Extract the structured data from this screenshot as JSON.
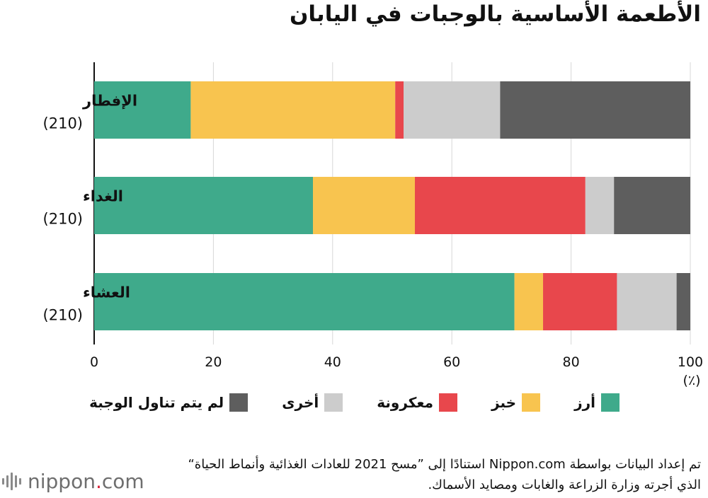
{
  "title": "الأطعمة الأساسية بالوجبات في اليابان",
  "chart_data": {
    "type": "bar",
    "orientation": "horizontal",
    "stacked": true,
    "categories": [
      {
        "label": "الإفطار",
        "n": "(210)"
      },
      {
        "label": "الغداء",
        "n": "(210)"
      },
      {
        "label": "العشاء",
        "n": "(210)"
      }
    ],
    "series": [
      {
        "name": "أرز",
        "color": "#3faa8b",
        "values": [
          16.2,
          36.7,
          70.5
        ]
      },
      {
        "name": "خبز",
        "color": "#f8c44f",
        "values": [
          34.3,
          17.1,
          4.8
        ]
      },
      {
        "name": "معكرونة",
        "color": "#e8474c",
        "values": [
          1.4,
          28.6,
          12.4
        ]
      },
      {
        "name": "أخرى",
        "color": "#cccccc",
        "values": [
          16.2,
          4.8,
          10.0
        ]
      },
      {
        "name": "لم يتم تناول الوجبة",
        "color": "#5e5e5e",
        "values": [
          31.9,
          12.8,
          2.3
        ]
      }
    ],
    "xlim": [
      0,
      100
    ],
    "xticks": [
      0,
      20,
      40,
      60,
      80,
      100
    ],
    "x_unit": "(٪)",
    "grid": true
  },
  "source": "تم إعداد البيانات بواسطة Nippon.com استنادًا إلى ”مسح 2021 للعادات الغذائية وأنماط الحياة“ الذي أجرته وزارة الزراعة والغابات ومصايد الأسماك.",
  "logo": {
    "text": "nippon",
    "dot": ".",
    "suffix": "com",
    "dot_color": "#d9243a"
  }
}
